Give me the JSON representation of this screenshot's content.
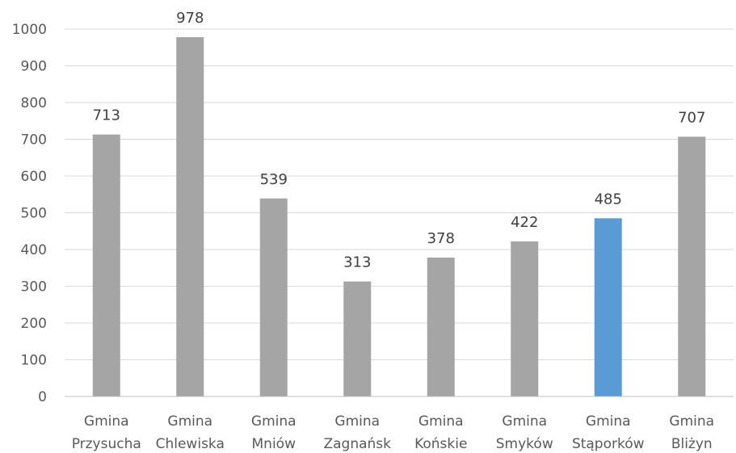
{
  "chart_data": {
    "type": "bar",
    "title": "",
    "xlabel": "",
    "ylabel": "",
    "ylim": [
      0,
      1000
    ],
    "yticks": [
      0,
      100,
      200,
      300,
      400,
      500,
      600,
      700,
      800,
      900,
      1000
    ],
    "categories": [
      [
        "Gmina",
        "Przysucha"
      ],
      [
        "Gmina",
        "Chlewiska"
      ],
      [
        "Gmina",
        "Mniów"
      ],
      [
        "Gmina",
        "Zagnańsk"
      ],
      [
        "Gmina",
        "Końskie"
      ],
      [
        "Gmina",
        "Smyków"
      ],
      [
        "Gmina",
        "Stąporków"
      ],
      [
        "Gmina",
        "Bliżyn"
      ]
    ],
    "values": [
      713,
      978,
      539,
      313,
      378,
      422,
      485,
      707
    ],
    "data_labels": [
      "713",
      "978",
      "539",
      "313",
      "378",
      "422",
      "485",
      "707"
    ],
    "highlight_index": 6,
    "colors": {
      "bar": "#a5a5a5",
      "highlight": "#5b9bd5",
      "grid": "#d9d9d9",
      "axis": "#bfbfbf"
    },
    "grid": true,
    "legend": "none"
  }
}
